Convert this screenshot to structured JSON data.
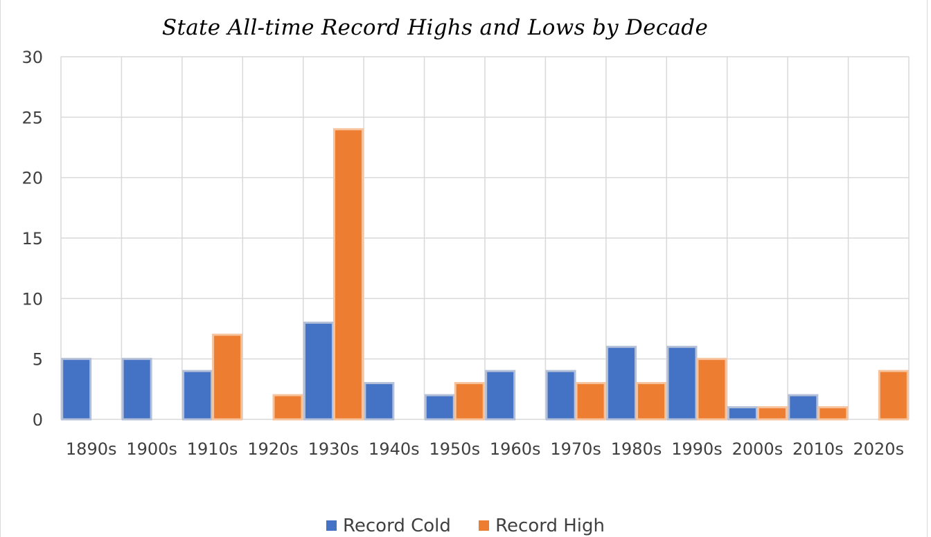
{
  "chart_data": {
    "type": "bar",
    "title": "State All-time Record Highs and Lows by Decade",
    "xlabel": "",
    "ylabel": "",
    "categories": [
      "1890s",
      "1900s",
      "1910s",
      "1920s",
      "1930s",
      "1940s",
      "1950s",
      "1960s",
      "1970s",
      "1980s",
      "1990s",
      "2000s",
      "2010s",
      "2020s"
    ],
    "series": [
      {
        "name": "Record Cold",
        "color": "#4472c4",
        "values": [
          5,
          5,
          4,
          0,
          8,
          3,
          2,
          4,
          4,
          6,
          6,
          1,
          2,
          0
        ]
      },
      {
        "name": "Record High",
        "color": "#ed7d31",
        "values": [
          0,
          0,
          7,
          2,
          24,
          0,
          3,
          0,
          3,
          3,
          5,
          1,
          1,
          4
        ]
      }
    ],
    "ylim": [
      0,
      30
    ],
    "yticks": [
      0,
      5,
      10,
      15,
      20,
      25,
      30
    ],
    "grid": true,
    "legend_position": "bottom"
  }
}
